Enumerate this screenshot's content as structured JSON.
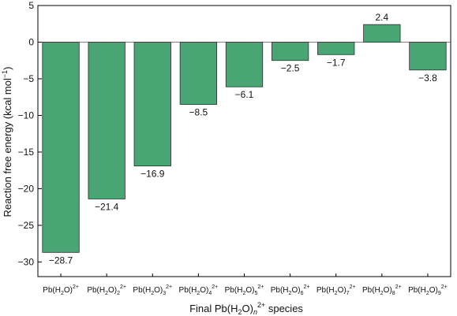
{
  "chart_data": {
    "type": "bar",
    "xlabel": "Final Pb(H2O)n2+ species",
    "ylabel": "Reaction free energy (kcal mol−1)",
    "categories": [
      "Pb(H2O)2+",
      "Pb(H2O)22+",
      "Pb(H2O)32+",
      "Pb(H2O)42+",
      "Pb(H2O)52+",
      "Pb(H2O)62+",
      "Pb(H2O)72+",
      "Pb(H2O)82+",
      "Pb(H2O)92+"
    ],
    "category_parts": [
      {
        "pre": "Pb(H",
        "h2": "2",
        "mid": "O)",
        "n": "",
        "charge": "2+"
      },
      {
        "pre": "Pb(H",
        "h2": "2",
        "mid": "O)",
        "n": "2",
        "charge": "2+"
      },
      {
        "pre": "Pb(H",
        "h2": "2",
        "mid": "O)",
        "n": "3",
        "charge": "2+"
      },
      {
        "pre": "Pb(H",
        "h2": "2",
        "mid": "O)",
        "n": "4",
        "charge": "2+"
      },
      {
        "pre": "Pb(H",
        "h2": "2",
        "mid": "O)",
        "n": "5",
        "charge": "2+"
      },
      {
        "pre": "Pb(H",
        "h2": "2",
        "mid": "O)",
        "n": "6",
        "charge": "2+"
      },
      {
        "pre": "Pb(H",
        "h2": "2",
        "mid": "O)",
        "n": "7",
        "charge": "2+"
      },
      {
        "pre": "Pb(H",
        "h2": "2",
        "mid": "O)",
        "n": "8",
        "charge": "2+"
      },
      {
        "pre": "Pb(H",
        "h2": "2",
        "mid": "O)",
        "n": "9",
        "charge": "2+"
      }
    ],
    "values": [
      -28.7,
      -21.4,
      -16.9,
      -8.5,
      -6.1,
      -2.5,
      -1.7,
      2.4,
      -3.8
    ],
    "data_labels": [
      "−28.7",
      "−21.4",
      "−16.9",
      "−8.5",
      "−6.1",
      "−2.5",
      "−1.7",
      "2.4",
      "−3.8"
    ],
    "ylim": [
      -32,
      5
    ],
    "yticks": [
      5,
      0,
      -5,
      -10,
      -15,
      -20,
      -25,
      -30
    ],
    "ytick_labels": [
      "5",
      "0",
      "−5",
      "−10",
      "−15",
      "−20",
      "−25",
      "−30"
    ],
    "grid": false,
    "bar_color": "#4aa575"
  }
}
